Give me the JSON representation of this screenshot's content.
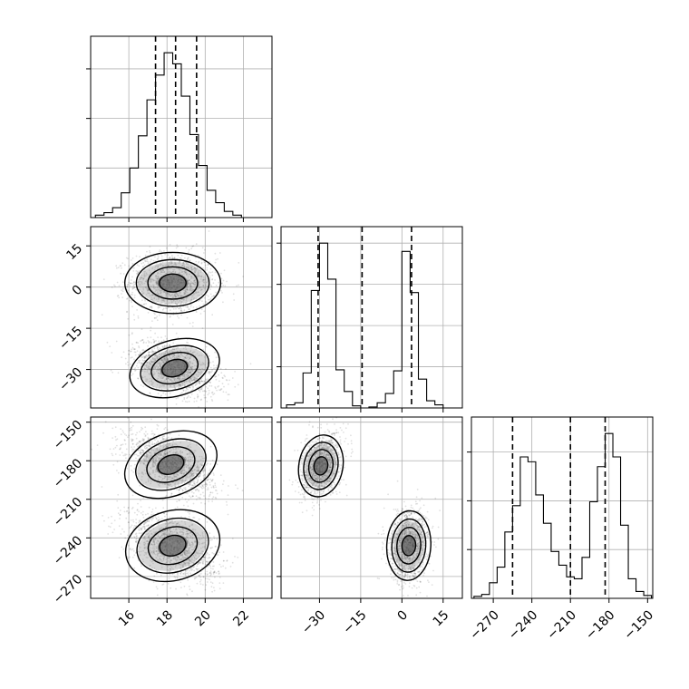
{
  "chart_data": {
    "type": "corner",
    "parameters": [
      "",
      "",
      ""
    ],
    "grid": true,
    "axes": [
      {
        "range": [
          14,
          23.5
        ],
        "ticks": [
          16,
          18,
          20,
          22
        ],
        "tick_labels": [
          "16",
          "18",
          "20",
          "22"
        ]
      },
      {
        "range": [
          -44,
          22
        ],
        "ticks": [
          -30,
          -15,
          0,
          15
        ],
        "tick_labels": [
          "−30",
          "−15",
          "0",
          "15"
        ]
      },
      {
        "range": [
          -287,
          -146
        ],
        "ticks": [
          -270,
          -240,
          -210,
          -180,
          -150
        ],
        "tick_labels": [
          "−270",
          "−240",
          "−210",
          "−180",
          "−150"
        ]
      }
    ],
    "histograms": [
      {
        "param": 0,
        "bin_edges": [
          14.25,
          14.7,
          15.15,
          15.6,
          16.05,
          16.5,
          16.95,
          17.4,
          17.85,
          18.3,
          18.75,
          19.2,
          19.65,
          20.1,
          20.55,
          21.0,
          21.45,
          21.9,
          22.35
        ],
        "counts": [
          2,
          4,
          8,
          20,
          40,
          66,
          95,
          115,
          133,
          124,
          98,
          67,
          42,
          22,
          12,
          5,
          2,
          0
        ],
        "quantiles": [
          17.4,
          18.45,
          19.55
        ]
      },
      {
        "param": 1,
        "bin_edges": [
          -42,
          -39,
          -36,
          -33,
          -30,
          -27,
          -24,
          -21,
          -18,
          -15,
          -12,
          -9,
          -6,
          -3,
          0,
          3,
          6,
          9,
          12,
          15
        ],
        "counts": [
          3,
          5,
          34,
          114,
          160,
          125,
          37,
          16,
          2,
          0,
          1,
          5,
          14,
          36,
          152,
          112,
          28,
          7,
          3
        ],
        "quantiles": [
          -30.5,
          -14.5,
          3.5
        ]
      },
      {
        "param": 2,
        "bin_edges": [
          -285,
          -279,
          -273,
          -267,
          -261,
          -255,
          -249,
          -243,
          -237,
          -231,
          -225,
          -219,
          -213,
          -207,
          -201,
          -195,
          -189,
          -183,
          -177,
          -171,
          -165,
          -159,
          -153,
          -147
        ],
        "counts": [
          2,
          4,
          16,
          32,
          68,
          95,
          145,
          140,
          106,
          77,
          48,
          34,
          22,
          20,
          42,
          99,
          135,
          169,
          145,
          75,
          20,
          7,
          3
        ],
        "quantiles": [
          -255,
          -210,
          -183
        ]
      }
    ],
    "scatter_panels": [
      {
        "x_param": 0,
        "y_param": 1,
        "modes": [
          {
            "mean": [
              18.3,
              1.5
            ],
            "sd": [
              1.15,
              5.5
            ],
            "rho": 0.0,
            "weight": 0.5
          },
          {
            "mean": [
              18.4,
              -29.5
            ],
            "sd": [
              1.1,
              5.0
            ],
            "rho": -0.45,
            "weight": 0.5
          }
        ]
      },
      {
        "x_param": 0,
        "y_param": 2,
        "modes": [
          {
            "mean": [
              18.2,
              -183
            ],
            "sd": [
              1.15,
              12.0
            ],
            "rho": -0.6,
            "weight": 0.5
          },
          {
            "mean": [
              18.3,
              -246
            ],
            "sd": [
              1.15,
              13.5
            ],
            "rho": -0.45,
            "weight": 0.5
          }
        ]
      },
      {
        "x_param": 1,
        "y_param": 2,
        "modes": [
          {
            "mean": [
              -29.5,
              -184
            ],
            "sd": [
              3.5,
              12.0
            ],
            "rho": 0.3,
            "weight": 0.5
          },
          {
            "mean": [
              2.5,
              -246
            ],
            "sd": [
              3.5,
              13.5
            ],
            "rho": 0.1,
            "weight": 0.5
          }
        ]
      }
    ]
  }
}
